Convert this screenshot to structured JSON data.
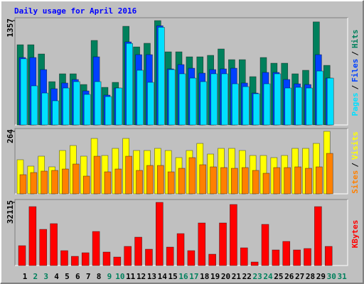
{
  "chart_data": [
    {
      "type": "bar",
      "title": "Daily usage for April 2016",
      "ylim": [
        0,
        1357
      ],
      "yticks": [
        1357
      ],
      "legend_separator": "/",
      "series": [
        {
          "name": "Hits",
          "color": "#00805c",
          "values": [
            1043,
            1043,
            923,
            563,
            665,
            665,
            526,
            1099,
            489,
            554,
            1283,
            1015,
            1062,
            1357,
            951,
            951,
            886,
            886,
            905,
            988,
            849,
            849,
            628,
            877,
            803,
            803,
            665,
            711,
            1340,
            775,
            null
          ]
        },
        {
          "name": "Files",
          "color": "#0040ff",
          "values": [
            877,
            877,
            720,
            471,
            545,
            591,
            443,
            886,
            388,
            480,
            1080,
            914,
            914,
            1290,
            729,
            785,
            738,
            674,
            720,
            729,
            738,
            545,
            415,
            683,
            683,
            591,
            535,
            526,
            914,
            609,
            null
          ]
        },
        {
          "name": "Pages",
          "color": "#00e0ff",
          "values": [
            860,
            508,
            415,
            314,
            480,
            563,
            397,
            563,
            369,
            480,
            1060,
            711,
            554,
            1270,
            720,
            665,
            609,
            563,
            665,
            665,
            535,
            498,
            406,
            535,
            665,
            480,
            489,
            480,
            701,
            609,
            null
          ]
        }
      ]
    },
    {
      "type": "bar",
      "ylim": [
        0,
        264
      ],
      "yticks": [
        264
      ],
      "legend_separator": "/",
      "series": [
        {
          "name": "Visits",
          "color": "#ffff00",
          "values": [
            144,
            117,
            159,
            114,
            183,
            204,
            159,
            234,
            162,
            192,
            234,
            183,
            183,
            192,
            183,
            153,
            183,
            213,
            168,
            192,
            192,
            183,
            162,
            162,
            153,
            162,
            192,
            192,
            213,
            264,
            null
          ]
        },
        {
          "name": "Sites",
          "color": "#ff8000",
          "values": [
            81,
            90,
            96,
            99,
            105,
            126,
            75,
            159,
            93,
            105,
            159,
            99,
            120,
            120,
            93,
            108,
            153,
            123,
            114,
            111,
            108,
            111,
            99,
            87,
            111,
            111,
            114,
            108,
            114,
            171,
            null
          ]
        }
      ]
    },
    {
      "type": "bar",
      "ylim": [
        0,
        32115
      ],
      "yticks": [
        32115
      ],
      "categories": [
        "1",
        "2",
        "3",
        "4",
        "5",
        "6",
        "7",
        "8",
        "9",
        "10",
        "11",
        "12",
        "13",
        "14",
        "15",
        "16",
        "17",
        "18",
        "19",
        "20",
        "21",
        "22",
        "23",
        "24",
        "25",
        "26",
        "27",
        "28",
        "29",
        "30",
        "31"
      ],
      "category_colors": [
        "#000000",
        "#00805c",
        "#00805c",
        "#000000",
        "#000000",
        "#000000",
        "#000000",
        "#000000",
        "#00805c",
        "#00805c",
        "#000000",
        "#000000",
        "#000000",
        "#000000",
        "#000000",
        "#00805c",
        "#00805c",
        "#000000",
        "#000000",
        "#000000",
        "#000000",
        "#000000",
        "#00805c",
        "#00805c",
        "#000000",
        "#000000",
        "#000000",
        "#000000",
        "#000000",
        "#00805c",
        "#00805c"
      ],
      "series": [
        {
          "name": "KBytes",
          "color": "#ff0000",
          "values": [
            10100,
            29950,
            18400,
            21300,
            7580,
            4690,
            6500,
            17320,
            6860,
            4330,
            9740,
            14430,
            8300,
            32115,
            9380,
            16240,
            7580,
            21650,
            5770,
            21650,
            31030,
            9020,
            1800,
            20930,
            7940,
            12270,
            7940,
            8660,
            29950,
            9740,
            null
          ]
        }
      ]
    }
  ]
}
